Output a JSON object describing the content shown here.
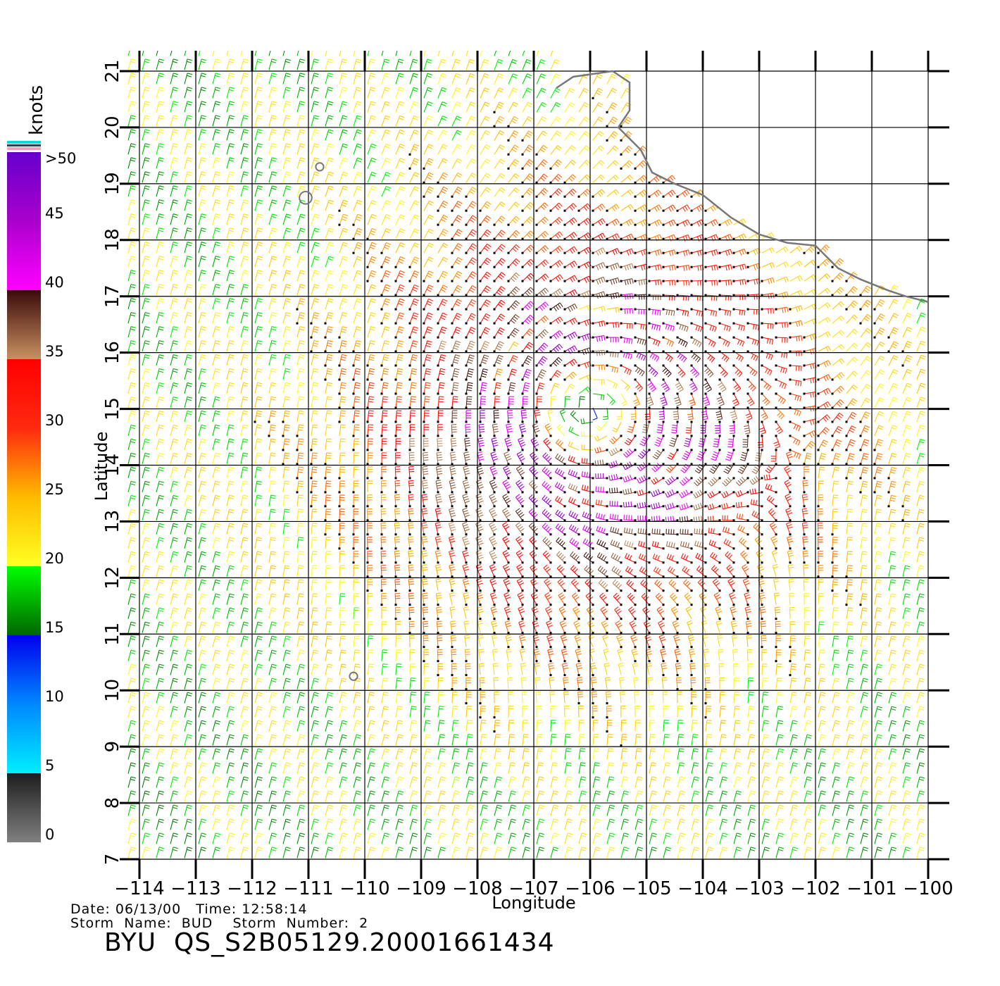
{
  "figure": {
    "info_line1": "Date: 06/13/00   Time: 12:58:14",
    "info_line2": "Storm  Name:  BUD    Storm  Number:  2",
    "file_id": "BYU  QS_S2B05129.20001661434"
  },
  "axes": {
    "xlabel": "Longitude",
    "ylabel": "Latitude",
    "xlim": [
      -114,
      -100
    ],
    "ylim": [
      7,
      21
    ],
    "x_ticks": [
      -114,
      -113,
      -112,
      -111,
      -110,
      -109,
      -108,
      -107,
      -106,
      -105,
      -104,
      -103,
      -102,
      -101,
      -100
    ],
    "x_tick_labels": [
      "−114",
      "−113",
      "−112",
      "−111",
      "−110",
      "−109",
      "−108",
      "−107",
      "−106",
      "−105",
      "−104",
      "−103",
      "−102",
      "−101",
      "−100"
    ],
    "y_ticks": [
      7,
      8,
      9,
      10,
      11,
      12,
      13,
      14,
      15,
      16,
      17,
      18,
      19,
      20,
      21
    ],
    "y_tick_labels": [
      "7",
      "8",
      "9",
      "10",
      "11",
      "12",
      "13",
      "14",
      "15",
      "16",
      "17",
      "18",
      "19",
      "20",
      "21"
    ],
    "grid": true
  },
  "colorbar": {
    "units": "knots",
    "tick_labels": [
      "0",
      "5",
      "10",
      "15",
      "20",
      "25",
      "30",
      "35",
      "40",
      "45",
      ">50"
    ],
    "tick_values": [
      0,
      5,
      10,
      15,
      20,
      25,
      30,
      35,
      40,
      45,
      50
    ],
    "stops": [
      {
        "value": 0,
        "color": "#808080"
      },
      {
        "value": 4.99,
        "color": "#1e1e1e"
      },
      {
        "value": 5,
        "color": "#00eeff"
      },
      {
        "value": 10,
        "color": "#0088ff"
      },
      {
        "value": 14.99,
        "color": "#0000ee"
      },
      {
        "value": 15,
        "color": "#006600"
      },
      {
        "value": 20,
        "color": "#00ff00"
      },
      {
        "value": 20.01,
        "color": "#ffff22"
      },
      {
        "value": 25,
        "color": "#ffbb00"
      },
      {
        "value": 30,
        "color": "#ff2a10"
      },
      {
        "value": 35,
        "color": "#ff0000"
      },
      {
        "value": 35.01,
        "color": "#c89060"
      },
      {
        "value": 40,
        "color": "#3a0a0a"
      },
      {
        "value": 40.01,
        "color": "#ff00ff"
      },
      {
        "value": 45,
        "color": "#aa00cc"
      },
      {
        "value": 50,
        "color": "#6600cc"
      }
    ]
  },
  "coastline": [
    [
      -106.6,
      20.7
    ],
    [
      -106.3,
      20.9
    ],
    [
      -105.6,
      21.0
    ],
    [
      -105.3,
      20.8
    ],
    [
      -105.3,
      20.3
    ],
    [
      -105.5,
      20.0
    ],
    [
      -105.1,
      19.6
    ],
    [
      -104.9,
      19.2
    ],
    [
      -104.5,
      19.0
    ],
    [
      -104.0,
      18.8
    ],
    [
      -103.5,
      18.4
    ],
    [
      -103.0,
      18.1
    ],
    [
      -102.5,
      17.95
    ],
    [
      -102.0,
      17.9
    ],
    [
      -101.6,
      17.5
    ],
    [
      -101.2,
      17.3
    ],
    [
      -100.7,
      17.1
    ],
    [
      -100.4,
      17.0
    ],
    [
      -100.0,
      16.9
    ]
  ],
  "islands": [
    {
      "lon": -110.8,
      "lat": 19.3,
      "r": 0.07
    },
    {
      "lon": -111.05,
      "lat": 18.75,
      "r": 0.11
    },
    {
      "lon": -110.2,
      "lat": 10.25,
      "r": 0.07
    }
  ],
  "storm": {
    "name": "BUD",
    "center_lon": -106.0,
    "center_lat": 15.0,
    "max_speed_knots": 47,
    "max_ring_inner_deg": 0.7,
    "max_ring_outer_deg": 1.8
  }
}
